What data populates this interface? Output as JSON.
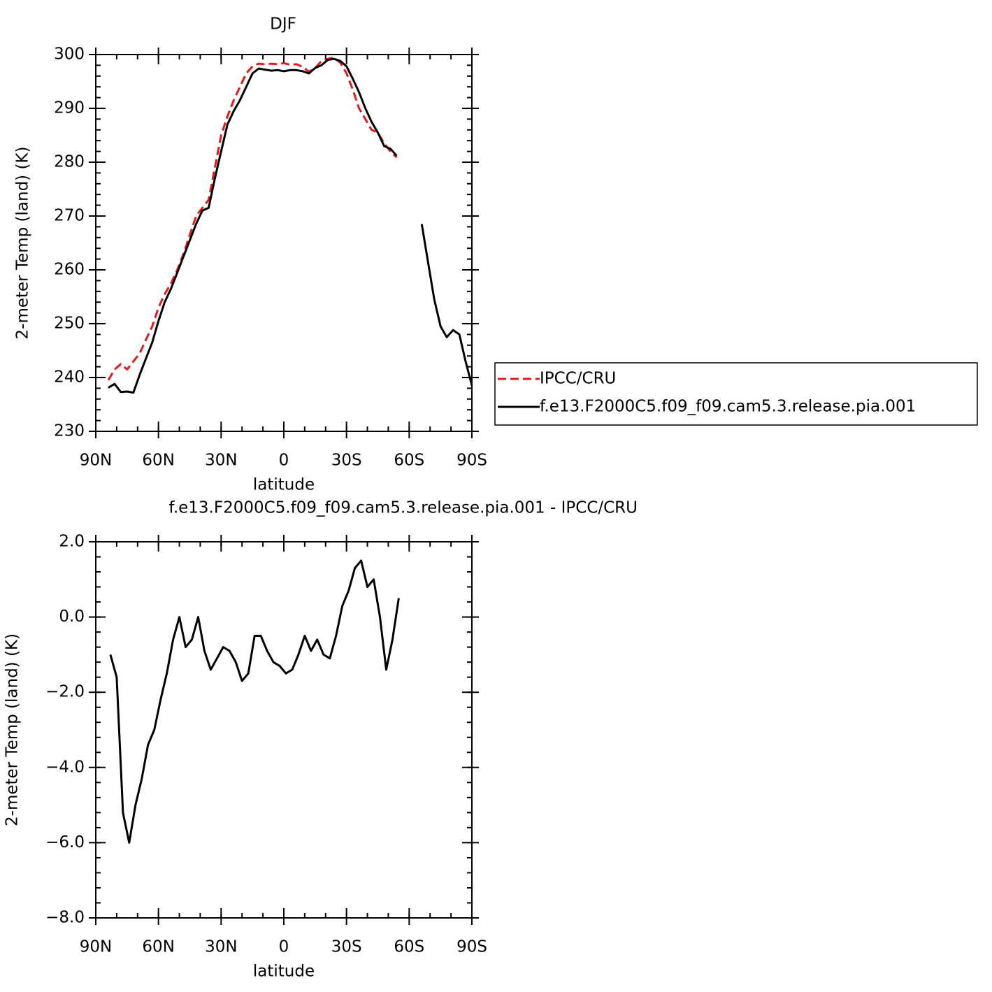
{
  "chart_data": [
    {
      "type": "line",
      "title": "DJF",
      "xlabel": "latitude",
      "ylabel": "2-meter Temp (land) (K)",
      "x": [
        84,
        81,
        78,
        75,
        72,
        69,
        66,
        63,
        60,
        57,
        54,
        51,
        48,
        45,
        42,
        39,
        36,
        33,
        30,
        27,
        24,
        21,
        18,
        15,
        12,
        9,
        6,
        3,
        0,
        -3,
        -6,
        -9,
        -12,
        -15,
        -18,
        -21,
        -24,
        -27,
        -30,
        -33,
        -36,
        -39,
        -42,
        -45,
        -48,
        -51,
        -54,
        -57,
        -60,
        -63,
        -66,
        -69,
        -72,
        -75,
        -78,
        -81,
        -84,
        -87,
        -90
      ],
      "series": [
        {
          "name": "IPCC/CRU",
          "color": "#e41a1c",
          "dashed": true,
          "values": [
            239.5,
            241.5,
            242.5,
            241.5,
            243,
            244.5,
            247,
            249.5,
            253,
            255.5,
            257.5,
            260,
            263,
            266.5,
            270,
            271.5,
            273,
            279,
            285,
            288.5,
            291.5,
            294,
            296.5,
            297.8,
            298.3,
            298.2,
            298.3,
            298.2,
            298.4,
            298.1,
            298.2,
            297.7,
            296.8,
            297.5,
            298.8,
            299.2,
            299.4,
            298.5,
            296.5,
            293.5,
            290,
            288,
            286,
            285.5,
            283.5,
            282,
            280.9,
            null,
            null,
            null,
            null,
            null,
            null,
            null,
            null,
            null,
            null,
            null,
            null
          ]
        },
        {
          "name": "f.e13.F2000C5.f09_f09.cam5.3.release.pia.001",
          "color": "#000000",
          "dashed": false,
          "values": [
            238.1,
            238.8,
            237.3,
            237.4,
            237.2,
            240.5,
            243.5,
            246.5,
            250.5,
            254,
            256.5,
            259.5,
            262.5,
            265.5,
            268.5,
            271,
            271.5,
            277,
            282,
            287,
            289.5,
            291.5,
            294,
            296.5,
            297.4,
            297.2,
            297,
            297.1,
            296.9,
            297.1,
            297.1,
            296.9,
            296.5,
            297.5,
            298,
            299,
            299.2,
            298.8,
            297.8,
            295.5,
            293,
            290,
            287.5,
            285.5,
            283,
            282.5,
            281.2,
            null,
            null,
            null,
            268.5,
            261.5,
            254.5,
            249.5,
            247.5,
            248.8,
            248,
            243,
            238.5
          ]
        }
      ],
      "xlim": [
        90,
        -90
      ],
      "xticks": [
        {
          "value": 90,
          "label": "90N"
        },
        {
          "value": 60,
          "label": "60N"
        },
        {
          "value": 30,
          "label": "30N"
        },
        0,
        {
          "value": -30,
          "label": "30S"
        },
        {
          "value": -60,
          "label": "60S"
        },
        {
          "value": -90,
          "label": "90S"
        }
      ],
      "ylim": [
        230,
        300
      ],
      "yticks": [
        230,
        240,
        250,
        260,
        270,
        280,
        290,
        300
      ],
      "legend": "right"
    },
    {
      "type": "line",
      "title": "f.e13.F2000C5.f09_f09.cam5.3.release.pia.001 - IPCC/CRU",
      "xlabel": "latitude",
      "ylabel": "2-meter Temp (land) (K)",
      "x": [
        83,
        80,
        77,
        74,
        71,
        68,
        65,
        62,
        59,
        56,
        53,
        50,
        47,
        44,
        41,
        38,
        35,
        32,
        29,
        26,
        23,
        20,
        17,
        14,
        11,
        8,
        5,
        2,
        -1,
        -4,
        -7,
        -10,
        -13,
        -16,
        -19,
        -22,
        -25,
        -28,
        -31,
        -34,
        -37,
        -40,
        -43,
        -46,
        -49,
        -52,
        -55
      ],
      "series": [
        {
          "color": "#000000",
          "dashed": false,
          "values": [
            -1.0,
            -1.6,
            -5.2,
            -6.0,
            -5.0,
            -4.3,
            -3.4,
            -3.0,
            -2.2,
            -1.5,
            -0.6,
            0.0,
            -0.8,
            -0.6,
            0.0,
            -0.9,
            -1.4,
            -1.1,
            -0.8,
            -0.9,
            -1.2,
            -1.7,
            -1.5,
            -0.5,
            -0.5,
            -0.9,
            -1.2,
            -1.3,
            -1.5,
            -1.4,
            -1.0,
            -0.5,
            -0.9,
            -0.6,
            -1.0,
            -1.1,
            -0.5,
            0.3,
            0.7,
            1.3,
            1.5,
            0.8,
            1.0,
            0.0,
            -1.4,
            -0.6,
            0.5
          ]
        }
      ],
      "xlim": [
        90,
        -90
      ],
      "xticks": [
        {
          "value": 90,
          "label": "90N"
        },
        {
          "value": 60,
          "label": "60N"
        },
        {
          "value": 30,
          "label": "30N"
        },
        0,
        {
          "value": -30,
          "label": "30S"
        },
        {
          "value": -60,
          "label": "60S"
        },
        {
          "value": -90,
          "label": "90S"
        }
      ],
      "ylim": [
        -8,
        2
      ],
      "yticks": [
        {
          "value": -8,
          "label": "−8.0"
        },
        {
          "value": -6,
          "label": "−6.0"
        },
        {
          "value": -4,
          "label": "−4.0"
        },
        {
          "value": -2,
          "label": "−2.0"
        },
        {
          "value": 0,
          "label": "0.0"
        },
        {
          "value": 2,
          "label": "2.0"
        }
      ]
    }
  ]
}
